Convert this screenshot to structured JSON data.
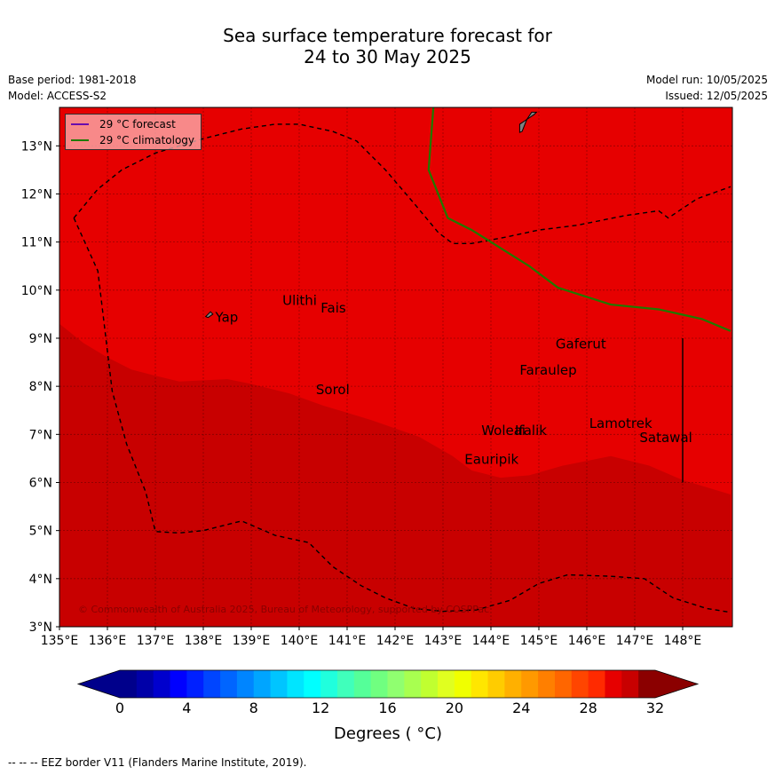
{
  "title_line1": "Sea surface temperature forecast for",
  "title_line2": "24 to 30 May 2025",
  "meta_left": {
    "base_period": "Base period: 1981-2018",
    "model": "Model: ACCESS-S2"
  },
  "meta_right": {
    "model_run": "Model run: 10/05/2025",
    "issued": "Issued: 12/05/2025"
  },
  "legend": {
    "forecast": "29 °C  forecast",
    "climatology": "29 °C  climatology",
    "forecast_color": "#6a0dad",
    "climatology_color": "#1f7a00"
  },
  "map": {
    "lon_range": [
      135,
      149
    ],
    "lat_range": [
      3,
      13.8
    ],
    "lon_ticks": [
      "135°E",
      "136°E",
      "137°E",
      "138°E",
      "139°E",
      "140°E",
      "141°E",
      "142°E",
      "143°E",
      "144°E",
      "145°E",
      "146°E",
      "147°E",
      "148°E"
    ],
    "lat_ticks": [
      "3°N",
      "4°N",
      "5°N",
      "6°N",
      "7°N",
      "8°N",
      "9°N",
      "10°N",
      "11°N",
      "12°N",
      "13°N"
    ],
    "colors": {
      "warm_region": "#e60000",
      "cooler_region": "#c80000",
      "land": "#808080"
    },
    "places": [
      {
        "name": "Yap",
        "lon": 138.25,
        "lat": 9.45
      },
      {
        "name": "Ulithi",
        "lon": 139.65,
        "lat": 9.8
      },
      {
        "name": "Fais",
        "lon": 140.45,
        "lat": 9.65
      },
      {
        "name": "Gaferut",
        "lon": 145.35,
        "lat": 8.9
      },
      {
        "name": "Faraulep",
        "lon": 144.6,
        "lat": 8.35
      },
      {
        "name": "Sorol",
        "lon": 140.35,
        "lat": 7.95
      },
      {
        "name": "Lamotrek",
        "lon": 146.05,
        "lat": 7.25
      },
      {
        "name": "Woleai",
        "lon": 143.8,
        "lat": 7.1
      },
      {
        "name": "Ifalik",
        "lon": 144.5,
        "lat": 7.1
      },
      {
        "name": "Satawal",
        "lon": 147.1,
        "lat": 6.95
      },
      {
        "name": "Eauripik",
        "lon": 143.45,
        "lat": 6.5
      }
    ],
    "copyright": "© Commonwealth of Australia 2025, Bureau of Meteorology, supported by COSPPac"
  },
  "colorbar": {
    "ticks": [
      "0",
      "4",
      "8",
      "12",
      "16",
      "20",
      "24",
      "28",
      "32"
    ],
    "label": "Degrees ( °C)",
    "colors": [
      "#00008b",
      "#0000a8",
      "#0000cd",
      "#0000ff",
      "#0020ff",
      "#0045ff",
      "#0065ff",
      "#0085ff",
      "#00a5ff",
      "#00c5ff",
      "#00e5ff",
      "#00ffff",
      "#20ffdd",
      "#40ffbb",
      "#55ff99",
      "#70ff80",
      "#90ff70",
      "#a8ff50",
      "#c0ff30",
      "#e0ff20",
      "#f0ff00",
      "#ffe600",
      "#ffcc00",
      "#ffb000",
      "#ff9900",
      "#ff7f00",
      "#ff6600",
      "#ff4500",
      "#ff2a00",
      "#e60000",
      "#c80000",
      "#8b0000"
    ]
  },
  "footer": "--  --  -- EEZ border V11 (Flanders Marine Institute, 2019)."
}
